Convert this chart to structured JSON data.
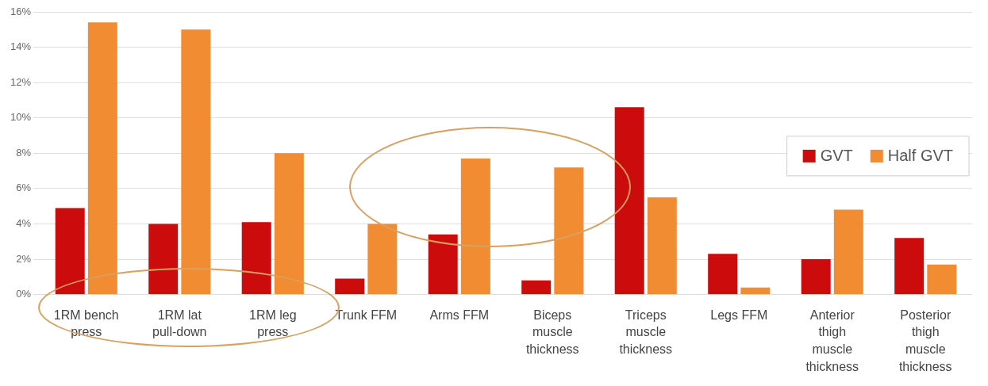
{
  "chart_data": {
    "type": "bar",
    "categories": [
      "1RM bench press",
      "1RM lat pull-down",
      "1RM leg press",
      "Trunk FFM",
      "Arms FFM",
      "Biceps muscle thickness",
      "Triceps muscle thickness",
      "Legs FFM",
      "Anterior thigh muscle thickness",
      "Posterior thigh muscle thickness"
    ],
    "series": [
      {
        "name": "GVT",
        "color": "#cc0c0c",
        "values": [
          4.9,
          4.0,
          4.1,
          0.9,
          3.4,
          0.8,
          10.6,
          2.3,
          2.0,
          3.2
        ]
      },
      {
        "name": "Half GVT",
        "color": "#f28c32",
        "values": [
          15.4,
          15.0,
          8.0,
          4.0,
          7.7,
          7.2,
          5.5,
          0.4,
          4.8,
          1.7
        ]
      }
    ],
    "ylim": [
      0,
      16
    ],
    "yticks": [
      {
        "value": 0,
        "label": "0%"
      },
      {
        "value": 2,
        "label": "2%"
      },
      {
        "value": 4,
        "label": "4%"
      },
      {
        "value": 6,
        "label": "6%"
      },
      {
        "value": 8,
        "label": "8%"
      },
      {
        "value": 10,
        "label": "10%"
      },
      {
        "value": 12,
        "label": "12%"
      },
      {
        "value": 14,
        "label": "14%"
      },
      {
        "value": 16,
        "label": "16%"
      }
    ],
    "grid": "y",
    "legend": "right"
  }
}
